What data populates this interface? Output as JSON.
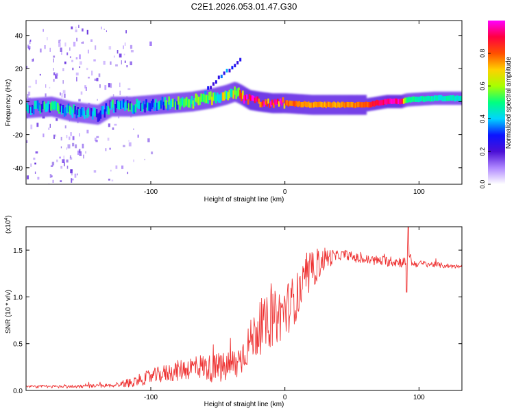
{
  "title": "C2E1.2026.053.01.47.G30",
  "chart_data": [
    {
      "type": "heatmap",
      "name": "spectrogram",
      "xlabel": "Height of straight line (km)",
      "ylabel": "Frequency (Hz)",
      "xlim": [
        -193,
        132
      ],
      "ylim": [
        -50,
        49
      ],
      "xticks": [
        -100,
        0,
        100
      ],
      "yticks": [
        -40,
        -20,
        0,
        20,
        40
      ],
      "colorbar": {
        "label": "Normalized spectral amplitude",
        "range": [
          0,
          1
        ],
        "ticks": [
          "0.0",
          "0.2",
          "0.4",
          "0.6",
          "0.8"
        ],
        "colormap": [
          "#ffffff",
          "#b088ff",
          "#4b0fd6",
          "#0b14ff",
          "#00d4ff",
          "#00ff80",
          "#a8ff00",
          "#ffd000",
          "#ff5000",
          "#ff0040",
          "#ff00ff"
        ]
      },
      "ridge": {
        "x": [
          -193,
          -175,
          -160,
          -150,
          -140,
          -130,
          -115,
          -100,
          -85,
          -70,
          -55,
          -45,
          -38,
          -33,
          -27,
          -20,
          -10,
          0,
          20,
          40,
          60,
          75,
          86,
          90,
          110,
          132
        ],
        "freq": [
          -4,
          -3,
          -6,
          -7,
          -8,
          -3,
          -3,
          -2,
          -1,
          0,
          2,
          4,
          6,
          4,
          1,
          0,
          -1,
          -1,
          -2,
          -2,
          -2,
          0,
          0,
          1,
          2,
          2
        ],
        "amplitude": [
          0.35,
          0.4,
          0.35,
          0.3,
          0.3,
          0.35,
          0.4,
          0.4,
          0.45,
          0.5,
          0.55,
          0.55,
          0.6,
          0.8,
          0.95,
          0.9,
          0.85,
          0.8,
          0.75,
          0.75,
          0.8,
          0.95,
          0.95,
          0.5,
          0.45,
          0.45
        ]
      }
    },
    {
      "type": "line",
      "name": "snr",
      "xlabel": "Height of straight line (km)",
      "ylabel": "SNR (10 * v/v)",
      "y_multiplier": "(x10",
      "y_multiplier_exp": "4",
      "y_multiplier_close": ")",
      "xlim": [
        -193,
        132
      ],
      "ylim": [
        0,
        1.75
      ],
      "xticks": [
        -100,
        0,
        100
      ],
      "yticks": [
        "0.0",
        "0.5",
        "1.0",
        "1.5"
      ],
      "color": "#ee3333",
      "anchors": {
        "x": [
          -193,
          -160,
          -130,
          -115,
          -100,
          -80,
          -65,
          -55,
          -45,
          -35,
          -28,
          -20,
          -10,
          0,
          10,
          20,
          30,
          45,
          55,
          70,
          85,
          90,
          92,
          95,
          105,
          120,
          132
        ],
        "y": [
          0.04,
          0.04,
          0.05,
          0.08,
          0.14,
          0.2,
          0.25,
          0.22,
          0.22,
          0.28,
          0.45,
          0.62,
          0.72,
          0.82,
          1.0,
          1.25,
          1.4,
          1.45,
          1.4,
          1.38,
          1.37,
          1.36,
          1.5,
          1.35,
          1.35,
          1.33,
          1.32
        ]
      },
      "noise": {
        "x": [
          -193,
          -130,
          -100,
          -60,
          -30,
          -20,
          0,
          20,
          40,
          90,
          96,
          132
        ],
        "amp": [
          0.015,
          0.02,
          0.08,
          0.14,
          0.2,
          0.28,
          0.3,
          0.2,
          0.05,
          0.06,
          0.04,
          0.02
        ]
      },
      "spikes": [
        {
          "x": 92,
          "y": 1.75
        },
        {
          "x": 91,
          "y": 1.05
        }
      ]
    }
  ]
}
